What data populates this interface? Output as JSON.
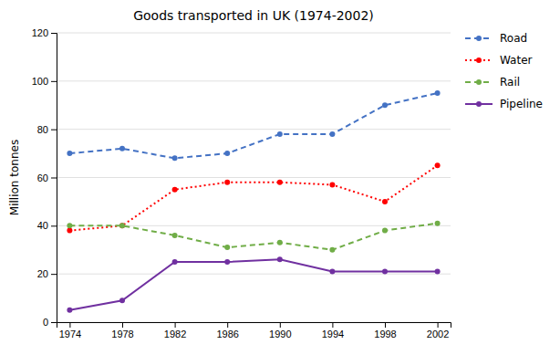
{
  "chart_data": {
    "type": "line",
    "title": "Goods transported in UK (1974-2002)",
    "y_label": "Million tonnes",
    "x": [
      1974,
      1978,
      1982,
      1986,
      1990,
      1994,
      1998,
      2002
    ],
    "series": [
      {
        "name": "Road",
        "color": "#4472C4",
        "marker": "circle",
        "line_style": "dashed",
        "values": [
          70,
          72,
          68,
          70,
          78,
          78,
          90,
          95
        ]
      },
      {
        "name": "Water",
        "color": "#FF0000",
        "marker": "circle",
        "line_style": "dotted",
        "values": [
          38,
          40,
          55,
          58,
          58,
          57,
          50,
          65
        ]
      },
      {
        "name": "Rail",
        "color": "#70AD47",
        "marker": "circle",
        "line_style": "dashed",
        "values": [
          40,
          40,
          36,
          31,
          33,
          30,
          38,
          41
        ]
      },
      {
        "name": "Pipeline",
        "color": "#7030A0",
        "marker": "circle",
        "line_style": "solid",
        "values": [
          5,
          9,
          25,
          25,
          26,
          21,
          21,
          21
        ]
      }
    ],
    "xlim": [
      1973,
      2003
    ],
    "xticks": [
      1974,
      1978,
      1982,
      1986,
      1990,
      1994,
      1998,
      2002
    ],
    "ylim": [
      0,
      120
    ],
    "yticks": [
      0,
      20,
      40,
      60,
      80,
      100,
      120
    ],
    "grid": "y",
    "legend": "right"
  }
}
